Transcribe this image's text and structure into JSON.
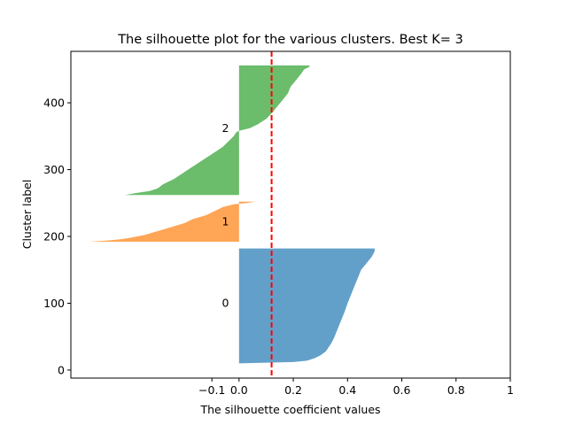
{
  "chart_data": {
    "type": "area",
    "title": "The silhouette plot for the various clusters. Best K= 3",
    "xlabel": "The silhouette coefficient values",
    "ylabel": "Cluster label",
    "xlim": [
      -0.62,
      1.0
    ],
    "ylim": [
      -12,
      477
    ],
    "xticks": [
      -0.1,
      0.0,
      0.2,
      0.4,
      0.6,
      0.8,
      1.0
    ],
    "xtick_labels": [
      "−0.1",
      "0.0",
      "0.2",
      "0.4",
      "0.6",
      "0.8",
      "1"
    ],
    "yticks": [
      0,
      100,
      200,
      300,
      400
    ],
    "grid": false,
    "legend": "none",
    "average_silhouette": 0.12,
    "clusters": [
      {
        "label": "0",
        "color": "#1f77b4",
        "y_start": 10,
        "y_end": 182,
        "label_x": -0.05,
        "label_y": 100,
        "profile": [
          [
            10,
            0.0
          ],
          [
            11,
            0.1
          ],
          [
            12,
            0.2
          ],
          [
            14,
            0.25
          ],
          [
            18,
            0.28
          ],
          [
            22,
            0.3
          ],
          [
            28,
            0.32
          ],
          [
            34,
            0.33
          ],
          [
            40,
            0.34
          ],
          [
            48,
            0.35
          ],
          [
            58,
            0.36
          ],
          [
            68,
            0.37
          ],
          [
            78,
            0.38
          ],
          [
            88,
            0.39
          ],
          [
            100,
            0.4
          ],
          [
            110,
            0.41
          ],
          [
            120,
            0.42
          ],
          [
            130,
            0.43
          ],
          [
            140,
            0.44
          ],
          [
            150,
            0.45
          ],
          [
            160,
            0.47
          ],
          [
            170,
            0.49
          ],
          [
            178,
            0.5
          ],
          [
            182,
            0.5
          ]
        ]
      },
      {
        "label": "1",
        "color": "#ff7f0e",
        "y_start": 192,
        "y_end": 252,
        "label_x": -0.05,
        "label_y": 222,
        "profile": [
          [
            192,
            -0.55
          ],
          [
            194,
            -0.48
          ],
          [
            196,
            -0.43
          ],
          [
            198,
            -0.4
          ],
          [
            202,
            -0.35
          ],
          [
            208,
            -0.3
          ],
          [
            214,
            -0.25
          ],
          [
            220,
            -0.2
          ],
          [
            226,
            -0.17
          ],
          [
            232,
            -0.12
          ],
          [
            238,
            -0.09
          ],
          [
            244,
            -0.06
          ],
          [
            248,
            -0.02
          ],
          [
            250,
            0.03
          ],
          [
            252,
            0.06
          ]
        ]
      },
      {
        "label": "2",
        "color": "#2ca02c",
        "y_start": 262,
        "y_end": 456,
        "label_x": -0.05,
        "label_y": 362,
        "profile": [
          [
            262,
            -0.42
          ],
          [
            265,
            -0.38
          ],
          [
            268,
            -0.33
          ],
          [
            272,
            -0.3
          ],
          [
            278,
            -0.28
          ],
          [
            286,
            -0.24
          ],
          [
            294,
            -0.21
          ],
          [
            302,
            -0.18
          ],
          [
            310,
            -0.15
          ],
          [
            318,
            -0.12
          ],
          [
            326,
            -0.09
          ],
          [
            334,
            -0.06
          ],
          [
            342,
            -0.04
          ],
          [
            350,
            -0.02
          ],
          [
            356,
            -0.01
          ],
          [
            358,
            0.0
          ],
          [
            362,
            0.04
          ],
          [
            368,
            0.07
          ],
          [
            376,
            0.1
          ],
          [
            384,
            0.12
          ],
          [
            394,
            0.14
          ],
          [
            404,
            0.16
          ],
          [
            414,
            0.18
          ],
          [
            424,
            0.19
          ],
          [
            434,
            0.21
          ],
          [
            444,
            0.23
          ],
          [
            450,
            0.24
          ],
          [
            454,
            0.26
          ],
          [
            456,
            0.26
          ]
        ]
      }
    ]
  }
}
